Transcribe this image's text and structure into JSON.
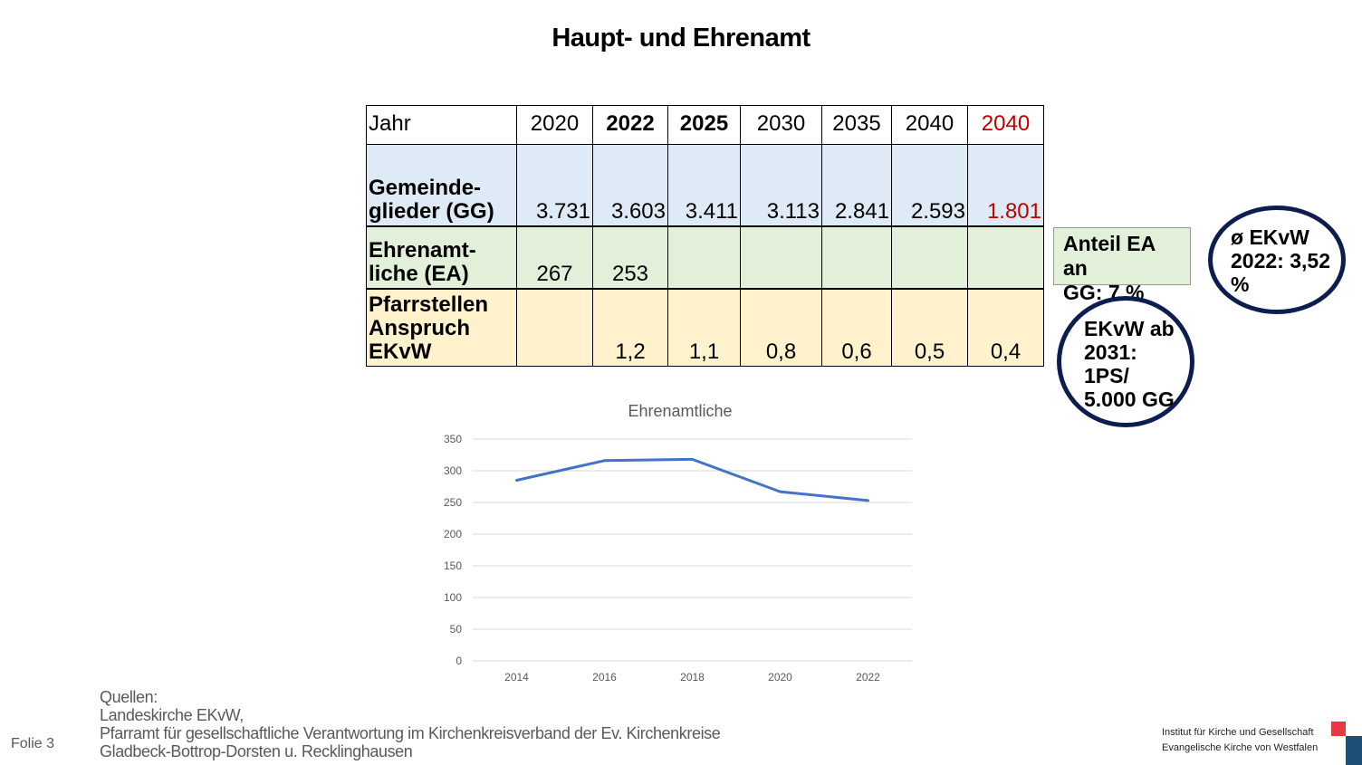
{
  "title": "Haupt- und Ehrenamt",
  "table": {
    "header": [
      "Jahr",
      "2020",
      "2022",
      "2025",
      "2030",
      "2035",
      "2040",
      "2040"
    ],
    "gg_label_1": "Gemeinde-",
    "gg_label_2": "glieder (GG)",
    "gg": [
      "3.731",
      "3.603",
      "3.411",
      "3.113",
      "2.841",
      "2.593",
      "1.801"
    ],
    "ea_label_1": "Ehrenamt-",
    "ea_label_2": "liche (EA)",
    "ea": [
      "267",
      "253",
      "",
      "",
      "",
      "",
      ""
    ],
    "ps_label_1": "Pfarrstellen",
    "ps_label_2": "Anspruch",
    "ps_label_3": "EKvW",
    "ps": [
      "",
      "1,2",
      "1,1",
      "0,8",
      "0,6",
      "0,5",
      "0,4"
    ]
  },
  "note_box": {
    "line1": "Anteil EA an",
    "line2": "GG: 7 %"
  },
  "circle1": {
    "line1": "ø EKvW",
    "line2": "2022: 3,52",
    "line3": "%"
  },
  "circle2": {
    "line1": "EKvW ab",
    "line2": "2031:",
    "line3": "1PS/",
    "line4": "5.000 GG"
  },
  "chart_data": {
    "type": "line",
    "title": "Ehrenamtliche",
    "categories": [
      "2014",
      "2016",
      "2018",
      "2020",
      "2022"
    ],
    "series": [
      {
        "name": "Ehrenamtliche",
        "values": [
          285,
          316,
          318,
          267,
          253
        ],
        "color": "#4472c4"
      }
    ],
    "ylim": [
      0,
      350
    ],
    "yticks": [
      "0",
      "50",
      "100",
      "150",
      "200",
      "250",
      "300",
      "350"
    ],
    "grid": true
  },
  "sources": {
    "line1": "Quellen:",
    "line2": "Landeskirche EKvW,",
    "line3": "Pfarramt für gesellschaftliche Verantwortung im Kirchenkreisverband der Ev. Kirchenkreise",
    "line4": "Gladbeck-Bottrop-Dorsten u. Recklinghausen"
  },
  "footer": {
    "slide": "Folie 3",
    "inst1": "Institut für Kirche und Gesellschaft",
    "inst2": "Evangelische Kirche von Westfalen"
  }
}
